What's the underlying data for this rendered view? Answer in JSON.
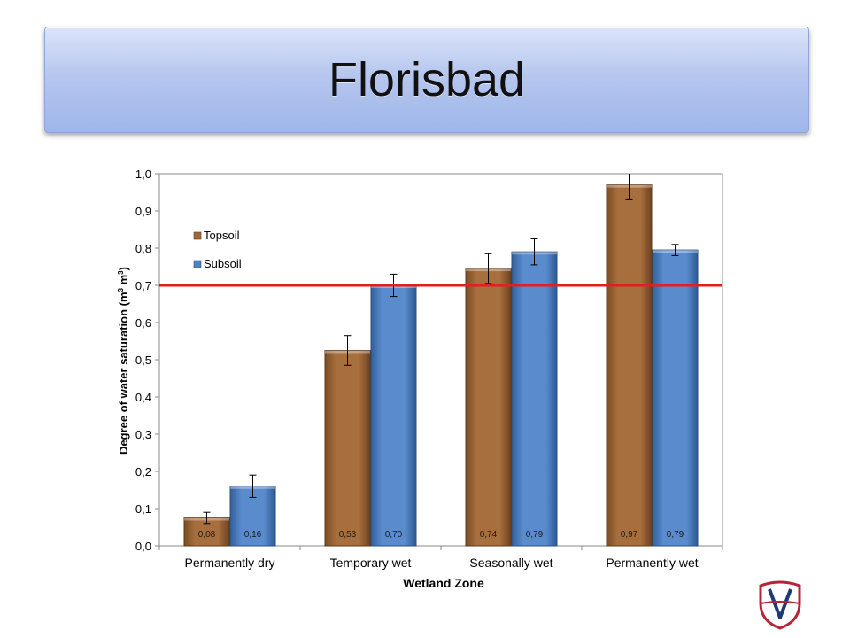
{
  "slide": {
    "title": "Florisbad"
  },
  "chart_data": {
    "type": "bar",
    "xlabel": "Wetland Zone",
    "ylabel_main": "Degree of water saturation (m",
    "ylabel_sup1": "3",
    "ylabel_mid": " m",
    "ylabel_sup2": "3",
    "ylabel_end": ")",
    "ylim": [
      0,
      1.0
    ],
    "yticks": [
      "0,0",
      "0,1",
      "0,2",
      "0,3",
      "0,4",
      "0,5",
      "0,6",
      "0,7",
      "0,8",
      "0,9",
      "1,0"
    ],
    "categories": [
      "Permanently dry",
      "Temporary wet",
      "Seasonally wet",
      "Permanently wet"
    ],
    "series": [
      {
        "name": "Topsoil",
        "color": "#a0693a",
        "values": [
          0.075,
          0.525,
          0.745,
          0.97
        ],
        "errors": [
          0.015,
          0.04,
          0.04,
          0.04
        ],
        "labels": [
          "0,08",
          "0,53",
          "0,74",
          "0,97"
        ]
      },
      {
        "name": "Subsoil",
        "color": "#4f81c4",
        "values": [
          0.16,
          0.7,
          0.79,
          0.795
        ],
        "errors": [
          0.03,
          0.03,
          0.035,
          0.015
        ],
        "labels": [
          "0,16",
          "0,70",
          "0,79",
          "0,79"
        ]
      }
    ],
    "reference_line": {
      "value": 0.7,
      "color": "#e02020"
    },
    "legend_position": "top-left",
    "grid": false
  }
}
